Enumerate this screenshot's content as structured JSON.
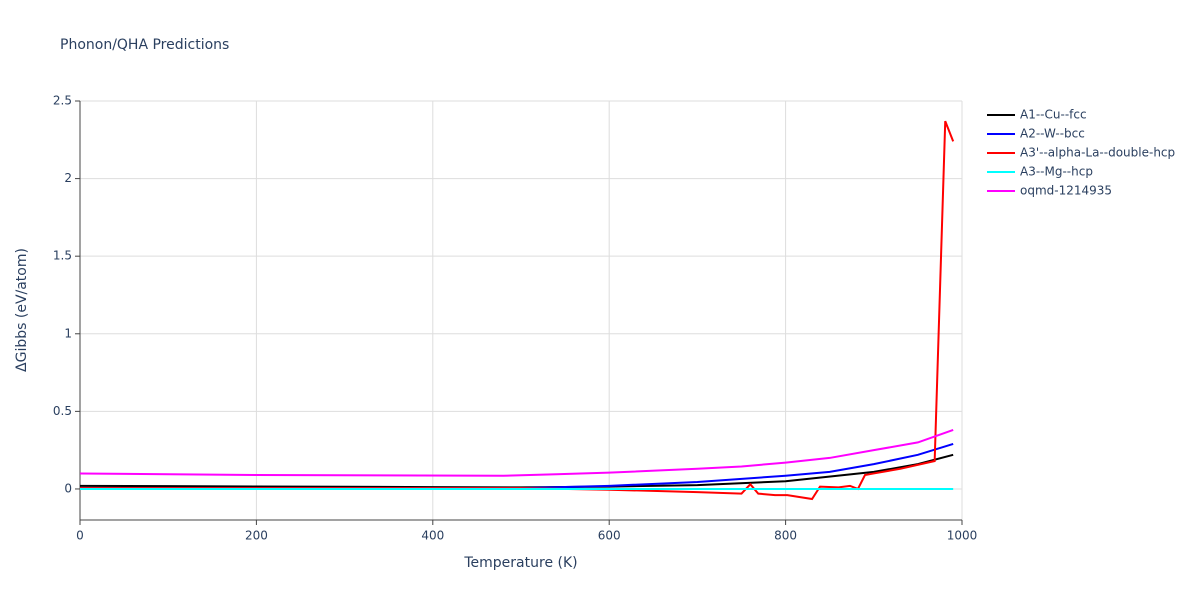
{
  "chart_data": {
    "type": "line",
    "title": "Phonon/QHA Predictions",
    "xlabel": "Temperature (K)",
    "ylabel": "ΔGibbs (eV/atom)",
    "xlim": [
      0,
      1000
    ],
    "ylim": [
      -0.2,
      2.5
    ],
    "xticks": [
      0,
      200,
      400,
      600,
      800,
      1000
    ],
    "yticks": [
      0,
      0.5,
      1,
      1.5,
      2,
      2.5
    ],
    "grid": true,
    "legend": "right",
    "series": [
      {
        "name": "A1--Cu--fcc",
        "color": "#000000",
        "x": [
          0,
          100,
          200,
          300,
          400,
          500,
          600,
          700,
          800,
          900,
          950,
          990
        ],
        "values": [
          0.02,
          0.018,
          0.016,
          0.014,
          0.012,
          0.01,
          0.015,
          0.025,
          0.05,
          0.11,
          0.16,
          0.22
        ]
      },
      {
        "name": "A2--W--bcc",
        "color": "#0000ff",
        "x": [
          0,
          100,
          200,
          300,
          400,
          500,
          600,
          700,
          800,
          850,
          900,
          950,
          990
        ],
        "values": [
          0.005,
          0.005,
          0.005,
          0.005,
          0.005,
          0.005,
          0.02,
          0.045,
          0.085,
          0.11,
          0.16,
          0.22,
          0.29
        ]
      },
      {
        "name": "A3'--alpha-La--double-hcp",
        "color": "#ff0000",
        "x": [
          0,
          100,
          200,
          300,
          400,
          500,
          600,
          700,
          750,
          760,
          769,
          788,
          802,
          830,
          839,
          860,
          873,
          882,
          890,
          900,
          930,
          969,
          981,
          990
        ],
        "values": [
          0.005,
          0.005,
          0.005,
          0.005,
          0.005,
          0.005,
          -0.005,
          -0.02,
          -0.03,
          0.03,
          -0.03,
          -0.04,
          -0.04,
          -0.065,
          0.015,
          0.01,
          0.02,
          0.0,
          0.09,
          0.1,
          0.13,
          0.18,
          2.37,
          2.24
        ]
      },
      {
        "name": "A3--Mg--hcp",
        "color": "#00ffff",
        "x": [
          0,
          200,
          400,
          600,
          800,
          990
        ],
        "values": [
          0,
          0,
          0,
          0,
          0,
          0
        ]
      },
      {
        "name": "oqmd-1214935",
        "color": "#ff00ff",
        "x": [
          0,
          200,
          480,
          540,
          600,
          700,
          750,
          800,
          850,
          900,
          950,
          990
        ],
        "values": [
          0.1,
          0.09,
          0.085,
          0.095,
          0.105,
          0.13,
          0.145,
          0.17,
          0.2,
          0.25,
          0.3,
          0.38
        ]
      }
    ]
  }
}
